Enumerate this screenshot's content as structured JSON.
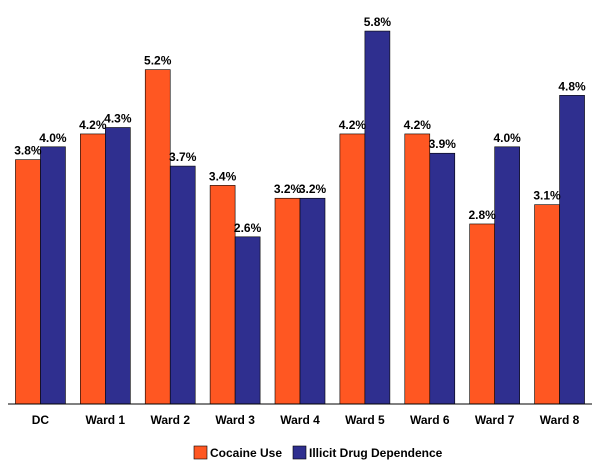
{
  "chart_data": {
    "type": "bar",
    "title": "",
    "xlabel": "",
    "ylabel": "",
    "ylim": [
      0,
      6.0
    ],
    "grid": false,
    "legend_position": "bottom",
    "categories": [
      "DC",
      "Ward 1",
      "Ward 2",
      "Ward 3",
      "Ward 4",
      "Ward 5",
      "Ward 6",
      "Ward 7",
      "Ward 8"
    ],
    "series": [
      {
        "name": "Cocaine Use",
        "color": "#ff5722",
        "values": [
          3.8,
          4.2,
          5.2,
          3.4,
          3.2,
          4.2,
          4.2,
          2.8,
          3.1
        ],
        "labels": [
          "3.8%",
          "4.2%",
          "5.2%",
          "3.4%",
          "3.2%",
          "4.2%",
          "4.2%",
          "2.8%",
          "3.1%"
        ]
      },
      {
        "name": "Illicit Drug Dependence",
        "color": "#2f2f8f",
        "values": [
          4.0,
          4.3,
          3.7,
          2.6,
          3.2,
          5.8,
          3.9,
          4.0,
          4.8
        ],
        "labels": [
          "4.0%",
          "4.3%",
          "3.7%",
          "2.6%",
          "3.2%",
          "5.8%",
          "3.9%",
          "4.0%",
          "4.8%"
        ]
      }
    ]
  }
}
